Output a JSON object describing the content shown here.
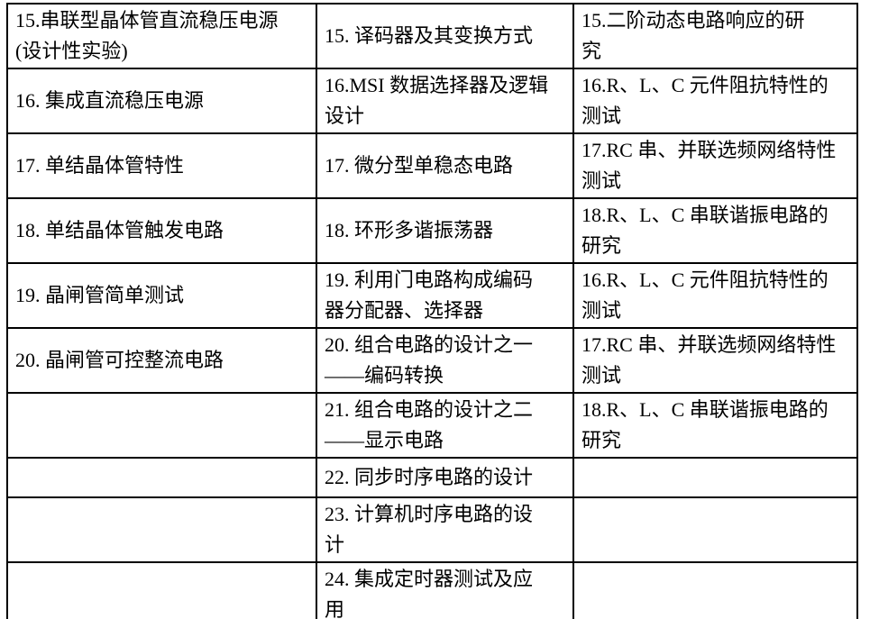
{
  "page": {
    "background_color": "#ffffff"
  },
  "table": {
    "border_color": "#000000",
    "text_color": "#000000",
    "columns_count": 3,
    "rows": [
      {
        "cells": [
          "15.串联型晶体管直流稳压电源\n(设计性实验)",
          "15. 译码器及其变换方式",
          "15.二阶动态电路响应的研\n究"
        ]
      },
      {
        "cells": [
          "16. 集成直流稳压电源",
          "16.MSI 数据选择器及逻辑\n设计",
          "16.R、L、C 元件阻抗特性的\n测试"
        ]
      },
      {
        "cells": [
          "17. 单结晶体管特性",
          "17. 微分型单稳态电路",
          "17.RC 串、并联选频网络特性\n测试"
        ]
      },
      {
        "cells": [
          "18. 单结晶体管触发电路",
          "18. 环形多谐振荡器",
          "18.R、L、C 串联谐振电路的\n研究"
        ]
      },
      {
        "cells": [
          "19. 晶闸管简单测试",
          "19. 利用门电路构成编码\n器分配器、选择器",
          "16.R、L、C 元件阻抗特性的\n测试"
        ]
      },
      {
        "cells": [
          "20. 晶闸管可控整流电路",
          "20. 组合电路的设计之一\n——编码转换",
          "17.RC 串、并联选频网络特性\n测试"
        ]
      },
      {
        "cells": [
          "",
          "21. 组合电路的设计之二\n——显示电路",
          "18.R、L、C 串联谐振电路的\n研究"
        ]
      },
      {
        "cells": [
          "",
          "22. 同步时序电路的设计",
          ""
        ]
      },
      {
        "cells": [
          "",
          "23. 计算机时序电路的设\n计",
          ""
        ]
      },
      {
        "cells": [
          "",
          "24. 集成定时器测试及应\n用",
          ""
        ]
      }
    ]
  }
}
